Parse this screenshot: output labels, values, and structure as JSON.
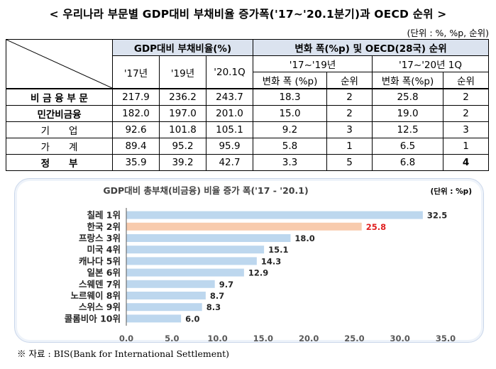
{
  "header": {
    "title": "< 우리나라 부문별 GDP대비 부채비율 증가폭('17~'20.1분기)과 OECD 순위 >",
    "unit": "(단위 : %, %p, 순위)"
  },
  "table": {
    "group1": "GDP대비 부채비율(%)",
    "group2": "변화 폭(%p) 및 OECD(28국) 순위",
    "years": [
      "'17년",
      "'19년",
      "'20.1Q"
    ],
    "period1": "'17~'19년",
    "period2": "'17~'20년 1Q",
    "sub": [
      "변화 폭 (%p)",
      "순위",
      "변화 폭(%p)",
      "순위"
    ],
    "rows": [
      {
        "label": "비 금 융 부 문",
        "v": [
          "217.9",
          "236.2",
          "243.7",
          "18.3",
          "2",
          "25.8",
          "2"
        ]
      },
      {
        "label": "민간비금융",
        "v": [
          "182.0",
          "197.0",
          "201.0",
          "15.0",
          "2",
          "19.0",
          "2"
        ]
      },
      {
        "label": "기　　업",
        "v": [
          "92.6",
          "101.8",
          "105.1",
          "9.2",
          "3",
          "12.5",
          "3"
        ]
      },
      {
        "label": "가　　계",
        "v": [
          "89.4",
          "95.2",
          "95.9",
          "5.8",
          "1",
          "6.5",
          "1"
        ]
      },
      {
        "label": "정　　부",
        "v": [
          "35.9",
          "39.2",
          "42.7",
          "3.3",
          "5",
          "6.8",
          "4"
        ]
      }
    ]
  },
  "chart_data": {
    "type": "bar",
    "orientation": "horizontal",
    "title": "GDP대비 총부채(비금융) 비율 증가 폭('17 - '20.1)",
    "unit": "(단위 : %p)",
    "categories": [
      "칠레 1위",
      "한국 2위",
      "프랑스 3위",
      "미국 4위",
      "캐나다 5위",
      "일본 6위",
      "스웨덴 7위",
      "노르웨이 8위",
      "스위스 9위",
      "콜롬비아 10위"
    ],
    "values": [
      32.5,
      25.8,
      18.0,
      15.1,
      14.3,
      12.9,
      9.7,
      8.7,
      8.3,
      6.0
    ],
    "value_labels": [
      "32.5",
      "25.8",
      "18.0",
      "15.1",
      "14.3",
      "12.9",
      "9.7",
      "8.7",
      "8.3",
      "6.0"
    ],
    "highlight_index": 1,
    "xlim": [
      0,
      35
    ],
    "xticks": [
      "0.0",
      "5.0",
      "10.0",
      "15.0",
      "20.0",
      "25.0",
      "30.0",
      "35.0"
    ],
    "grid": false,
    "colors": {
      "bar": "#bdd7ee",
      "highlight": "#f8cbad",
      "highlight_label": "#e02020",
      "axis": "#595959"
    }
  },
  "footer": {
    "source": "※ 자료 : BIS(Bank for International Settlement)"
  }
}
